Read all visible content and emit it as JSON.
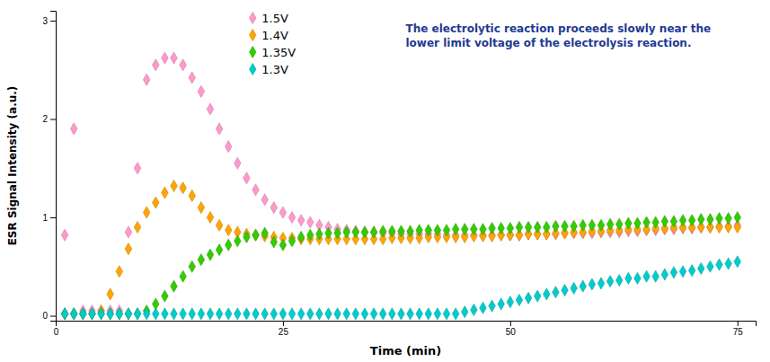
{
  "chart_data": {
    "type": "scatter",
    "xlabel": "Time (min)",
    "ylabel": "ESR Signal Intensity (a.u.)",
    "annotation": "The electrolytic reaction proceeds slowly near the\nlower limit voltage of the electrolysis reaction.",
    "xlim": [
      0,
      77
    ],
    "ylim": [
      -0.05,
      3.1
    ],
    "xticks": [
      0,
      25,
      50,
      75
    ],
    "yticks": [
      0,
      1,
      2,
      3
    ],
    "marker": "diamond",
    "x": [
      1,
      2,
      3,
      4,
      5,
      6,
      7,
      8,
      9,
      10,
      11,
      12,
      13,
      14,
      15,
      16,
      17,
      18,
      19,
      20,
      21,
      22,
      23,
      24,
      25,
      26,
      27,
      28,
      29,
      30,
      31,
      32,
      33,
      34,
      35,
      36,
      37,
      38,
      39,
      40,
      41,
      42,
      43,
      44,
      45,
      46,
      47,
      48,
      49,
      50,
      51,
      52,
      53,
      54,
      55,
      56,
      57,
      58,
      59,
      60,
      61,
      62,
      63,
      64,
      65,
      66,
      67,
      68,
      69,
      70,
      71,
      72,
      73,
      74,
      75
    ],
    "series": [
      {
        "name": "1.5V",
        "color": "#FF99CC",
        "values": [
          0.82,
          1.9,
          0.05,
          0.05,
          0.05,
          0.05,
          0.05,
          0.85,
          1.5,
          2.4,
          2.55,
          2.62,
          2.62,
          2.55,
          2.42,
          2.28,
          2.1,
          1.9,
          1.72,
          1.55,
          1.4,
          1.28,
          1.18,
          1.1,
          1.05,
          1.0,
          0.97,
          0.95,
          0.92,
          0.9,
          0.88,
          0.87,
          0.86,
          0.85,
          0.85,
          0.84,
          0.84,
          0.83,
          0.83,
          0.83,
          0.83,
          0.83,
          0.82,
          0.82,
          0.82,
          0.82,
          0.82,
          0.82,
          0.82,
          0.82,
          0.82,
          0.83,
          0.83,
          0.83,
          0.83,
          0.84,
          0.84,
          0.84,
          0.84,
          0.85,
          0.85,
          0.85,
          0.86,
          0.86,
          0.87,
          0.87,
          0.88,
          0.88,
          0.89,
          0.89,
          0.9,
          0.9,
          0.91,
          0.91,
          0.92
        ]
      },
      {
        "name": "1.4V",
        "color": "#FFA500",
        "values": [
          0.02,
          0.02,
          0.02,
          0.02,
          0.05,
          0.22,
          0.45,
          0.68,
          0.9,
          1.05,
          1.15,
          1.25,
          1.32,
          1.3,
          1.22,
          1.1,
          1.0,
          0.92,
          0.87,
          0.85,
          0.83,
          0.82,
          0.81,
          0.8,
          0.79,
          0.79,
          0.78,
          0.78,
          0.78,
          0.78,
          0.78,
          0.78,
          0.78,
          0.78,
          0.78,
          0.78,
          0.79,
          0.79,
          0.79,
          0.79,
          0.8,
          0.8,
          0.8,
          0.8,
          0.8,
          0.81,
          0.81,
          0.81,
          0.82,
          0.82,
          0.82,
          0.83,
          0.83,
          0.83,
          0.84,
          0.84,
          0.85,
          0.85,
          0.86,
          0.86,
          0.87,
          0.87,
          0.88,
          0.88,
          0.88,
          0.89,
          0.89,
          0.9,
          0.9,
          0.9,
          0.9,
          0.9,
          0.9,
          0.9,
          0.9
        ]
      },
      {
        "name": "1.35V",
        "color": "#33CC00",
        "values": [
          0.02,
          0.02,
          0.02,
          0.02,
          0.02,
          0.02,
          0.02,
          0.02,
          0.02,
          0.05,
          0.12,
          0.2,
          0.3,
          0.4,
          0.5,
          0.57,
          0.62,
          0.67,
          0.72,
          0.76,
          0.8,
          0.82,
          0.84,
          0.75,
          0.72,
          0.76,
          0.8,
          0.82,
          0.83,
          0.84,
          0.84,
          0.85,
          0.85,
          0.85,
          0.85,
          0.86,
          0.86,
          0.86,
          0.86,
          0.87,
          0.87,
          0.87,
          0.87,
          0.88,
          0.88,
          0.88,
          0.88,
          0.89,
          0.89,
          0.89,
          0.9,
          0.9,
          0.9,
          0.9,
          0.91,
          0.91,
          0.91,
          0.92,
          0.92,
          0.92,
          0.93,
          0.93,
          0.94,
          0.94,
          0.95,
          0.95,
          0.96,
          0.96,
          0.97,
          0.97,
          0.98,
          0.98,
          0.99,
          0.99,
          1.0
        ]
      },
      {
        "name": "1.3V",
        "color": "#00CCCC",
        "values": [
          0.02,
          0.02,
          0.02,
          0.02,
          0.02,
          0.02,
          0.02,
          0.02,
          0.02,
          0.02,
          0.02,
          0.02,
          0.02,
          0.02,
          0.02,
          0.02,
          0.02,
          0.02,
          0.02,
          0.02,
          0.02,
          0.02,
          0.02,
          0.02,
          0.02,
          0.02,
          0.02,
          0.02,
          0.02,
          0.02,
          0.02,
          0.02,
          0.02,
          0.02,
          0.02,
          0.02,
          0.02,
          0.02,
          0.02,
          0.02,
          0.02,
          0.02,
          0.02,
          0.02,
          0.04,
          0.06,
          0.08,
          0.1,
          0.12,
          0.14,
          0.16,
          0.18,
          0.2,
          0.22,
          0.24,
          0.26,
          0.28,
          0.3,
          0.32,
          0.33,
          0.35,
          0.36,
          0.38,
          0.38,
          0.4,
          0.4,
          0.42,
          0.44,
          0.45,
          0.46,
          0.48,
          0.5,
          0.52,
          0.53,
          0.55
        ]
      }
    ]
  }
}
